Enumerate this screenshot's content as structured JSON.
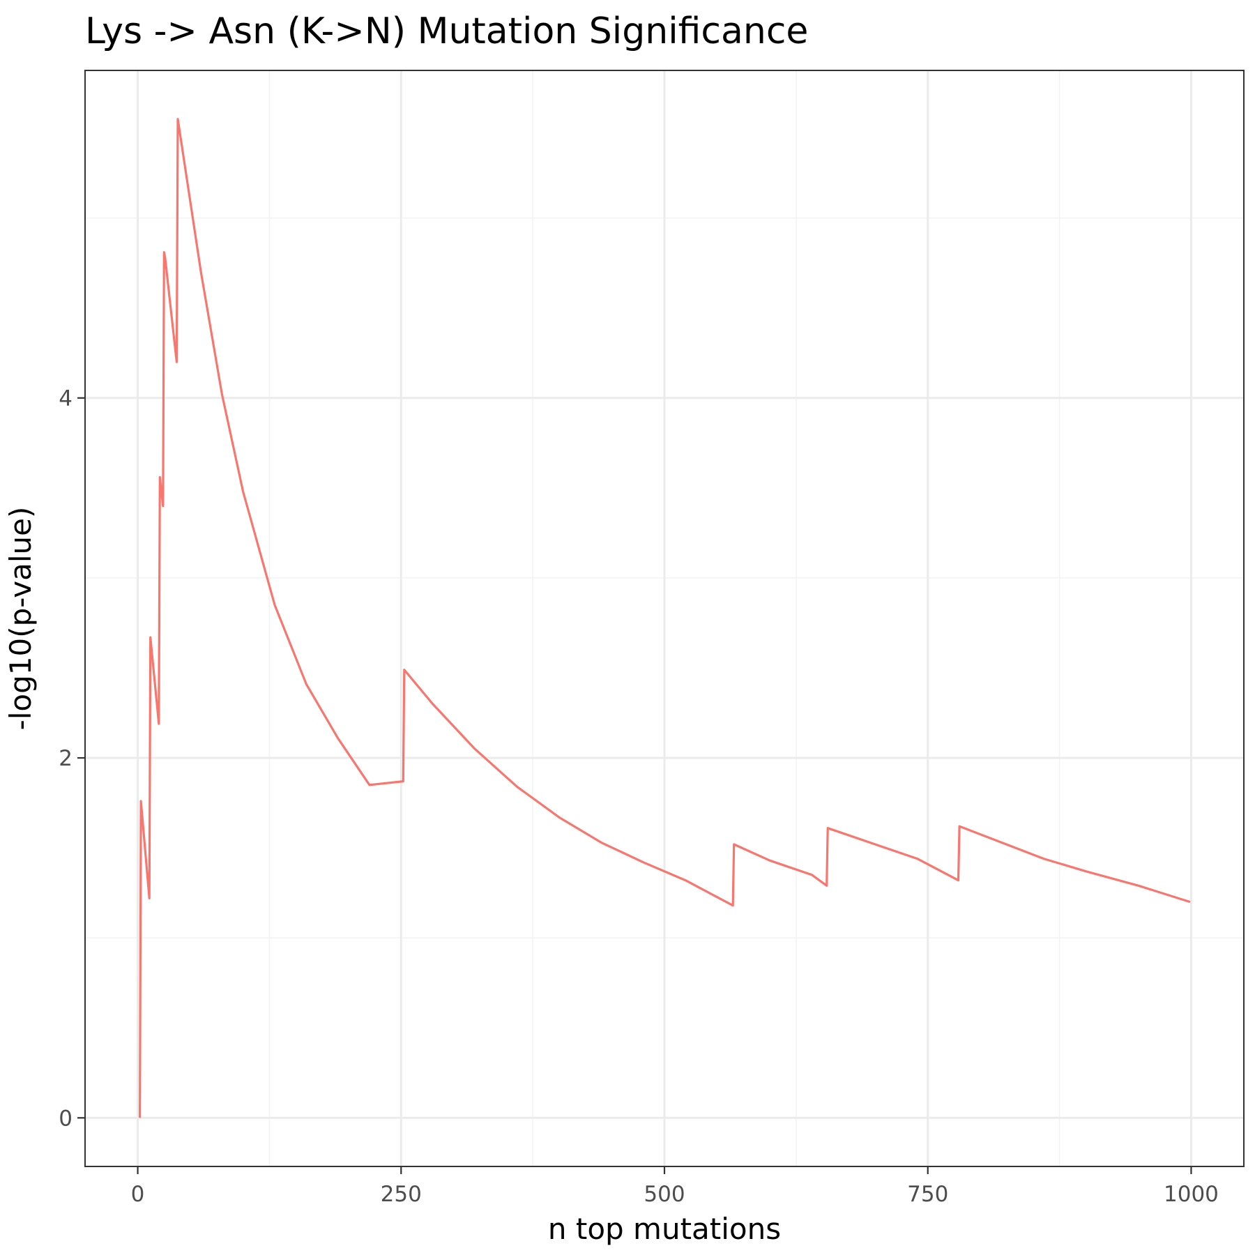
{
  "chart_data": {
    "type": "line",
    "title": "Lys -> Asn (K->N) Mutation Significance",
    "xlabel": "n top mutations",
    "ylabel": "-log10(p-value)",
    "xlim": [
      -50,
      1050
    ],
    "ylim": [
      -0.27,
      5.82
    ],
    "x_ticks": [
      0,
      250,
      500,
      750,
      1000
    ],
    "x_tick_labels": [
      "0",
      "250",
      "500",
      "750",
      "1000"
    ],
    "y_ticks": [
      0,
      2,
      4
    ],
    "y_tick_labels": [
      "0",
      "2",
      "4"
    ],
    "grid": true,
    "legend": "none",
    "series": [
      {
        "color": "#F8766D",
        "x": [
          2,
          3,
          11,
          12,
          20,
          21,
          24,
          25,
          26,
          37,
          38,
          60,
          80,
          100,
          130,
          160,
          190,
          220,
          252,
          253,
          280,
          320,
          360,
          400,
          440,
          480,
          520,
          565,
          566,
          600,
          640,
          654,
          655,
          700,
          740,
          779,
          780,
          820,
          860,
          900,
          950,
          999
        ],
        "y": [
          0,
          1.76,
          1.22,
          2.67,
          2.19,
          3.56,
          3.4,
          4.81,
          4.78,
          4.2,
          5.55,
          4.7,
          4.02,
          3.48,
          2.85,
          2.41,
          2.11,
          1.85,
          1.87,
          2.49,
          2.3,
          2.05,
          1.84,
          1.67,
          1.53,
          1.42,
          1.32,
          1.18,
          1.52,
          1.43,
          1.35,
          1.29,
          1.61,
          1.52,
          1.44,
          1.32,
          1.62,
          1.53,
          1.44,
          1.37,
          1.29,
          1.2
        ]
      }
    ]
  }
}
